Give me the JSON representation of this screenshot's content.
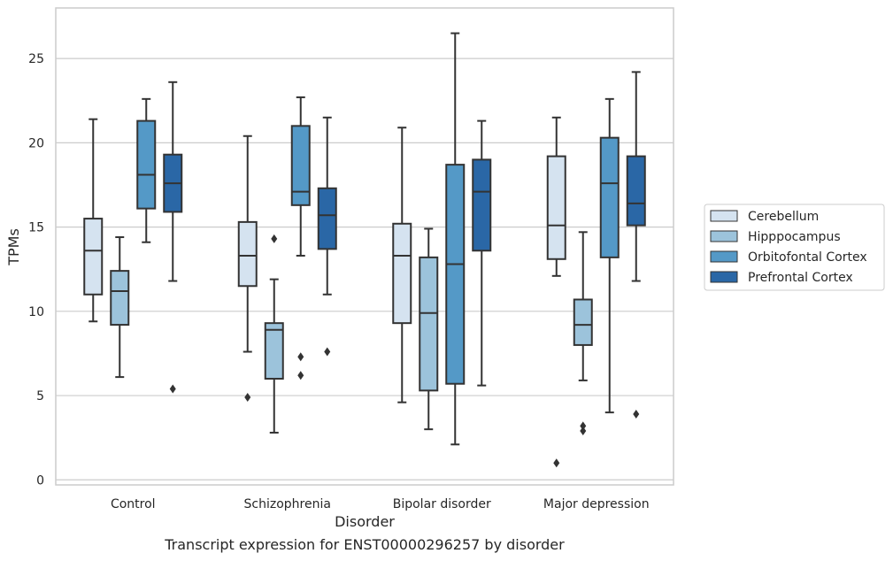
{
  "caption": "Transcript expression for ENST00000296257 by disorder",
  "chart_data": {
    "type": "box",
    "xlabel": "Disorder",
    "ylabel": "TPMs",
    "ylim": [
      -0.3,
      28
    ],
    "yticks": [
      0,
      5,
      10,
      15,
      20,
      25
    ],
    "grid": true,
    "legend_position": "right",
    "categories": [
      "Control",
      "Schizophrenia",
      "Bipolar disorder",
      "Major depression"
    ],
    "series": [
      {
        "name": "Cerebellum",
        "color": "#d5e3f0",
        "boxes": [
          {
            "whislo": 9.4,
            "q1": 11.0,
            "med": 13.6,
            "q3": 15.5,
            "whishi": 21.4,
            "fliers": []
          },
          {
            "whislo": 7.6,
            "q1": 11.5,
            "med": 13.3,
            "q3": 15.3,
            "whishi": 20.4,
            "fliers": [
              4.9
            ]
          },
          {
            "whislo": 4.6,
            "q1": 9.3,
            "med": 13.3,
            "q3": 15.2,
            "whishi": 20.9,
            "fliers": []
          },
          {
            "whislo": 12.1,
            "q1": 13.1,
            "med": 15.1,
            "q3": 19.2,
            "whishi": 21.5,
            "fliers": [
              1.0
            ]
          }
        ]
      },
      {
        "name": "Hipppocampus",
        "color": "#9cc3db",
        "boxes": [
          {
            "whislo": 6.1,
            "q1": 9.2,
            "med": 11.2,
            "q3": 12.4,
            "whishi": 14.4,
            "fliers": []
          },
          {
            "whislo": 2.8,
            "q1": 6.0,
            "med": 8.9,
            "q3": 9.3,
            "whishi": 11.9,
            "fliers": [
              14.3
            ]
          },
          {
            "whislo": 3.0,
            "q1": 5.3,
            "med": 9.9,
            "q3": 13.2,
            "whishi": 14.9,
            "fliers": []
          },
          {
            "whislo": 5.9,
            "q1": 8.0,
            "med": 9.2,
            "q3": 10.7,
            "whishi": 14.7,
            "fliers": [
              2.9,
              3.2
            ]
          }
        ]
      },
      {
        "name": "Orbitofontal Cortex",
        "color": "#5499c7",
        "boxes": [
          {
            "whislo": 14.1,
            "q1": 16.1,
            "med": 18.1,
            "q3": 21.3,
            "whishi": 22.6,
            "fliers": []
          },
          {
            "whislo": 13.3,
            "q1": 16.3,
            "med": 17.1,
            "q3": 21.0,
            "whishi": 22.7,
            "fliers": [
              6.2,
              7.3
            ]
          },
          {
            "whislo": 2.1,
            "q1": 5.7,
            "med": 12.8,
            "q3": 18.7,
            "whishi": 26.5,
            "fliers": []
          },
          {
            "whislo": 4.0,
            "q1": 13.2,
            "med": 17.6,
            "q3": 20.3,
            "whishi": 22.6,
            "fliers": []
          }
        ]
      },
      {
        "name": "Prefrontal Cortex",
        "color": "#2a67a6",
        "boxes": [
          {
            "whislo": 11.8,
            "q1": 15.9,
            "med": 17.6,
            "q3": 19.3,
            "whishi": 23.6,
            "fliers": [
              5.4
            ]
          },
          {
            "whislo": 11.0,
            "q1": 13.7,
            "med": 15.7,
            "q3": 17.3,
            "whishi": 21.5,
            "fliers": [
              7.6
            ]
          },
          {
            "whislo": 5.6,
            "q1": 13.6,
            "med": 17.1,
            "q3": 19.0,
            "whishi": 21.3,
            "fliers": []
          },
          {
            "whislo": 11.8,
            "q1": 15.1,
            "med": 16.4,
            "q3": 19.2,
            "whishi": 24.2,
            "fliers": [
              3.9
            ]
          }
        ]
      }
    ]
  }
}
